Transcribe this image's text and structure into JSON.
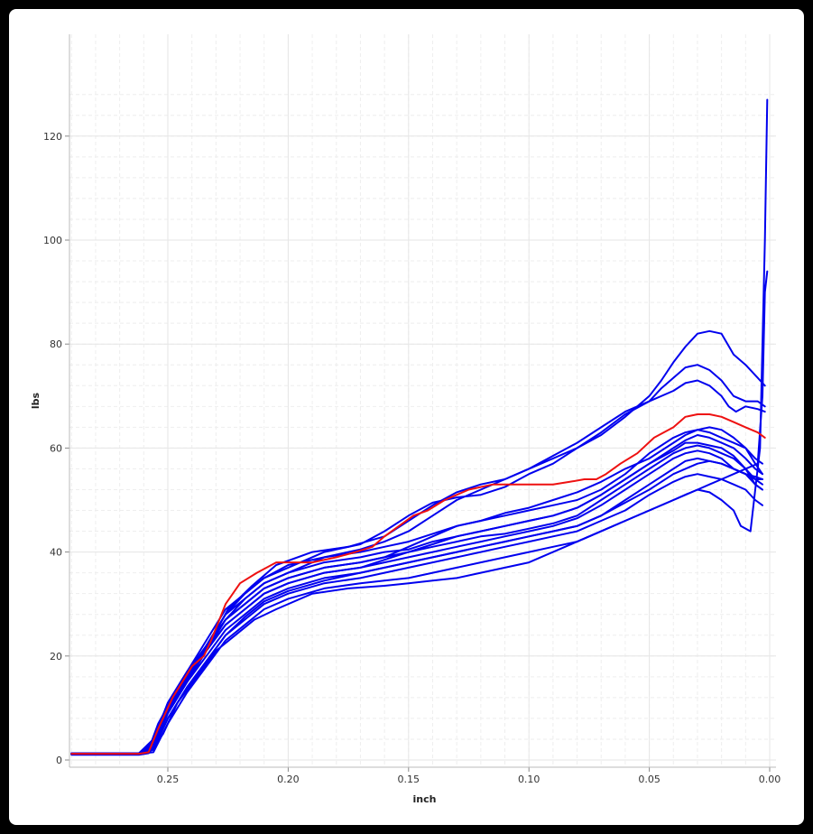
{
  "chart_data": {
    "type": "line",
    "xlabel": "inch",
    "ylabel": "lbs",
    "xlim": [
      0.29,
      0.0
    ],
    "ylim": [
      0,
      130
    ],
    "x_reversed": true,
    "grid": true,
    "x_ticks": [
      0.25,
      0.2,
      0.15,
      0.1,
      0.05,
      0.0
    ],
    "x_tick_labels": [
      "0.25",
      "0.20",
      "0.15",
      "0.10",
      "0.05",
      "0.00"
    ],
    "y_ticks": [
      0,
      20,
      40,
      60,
      80,
      100,
      120
    ],
    "y_tick_labels": [
      "0",
      "20",
      "40",
      "60",
      "80",
      "100",
      "120"
    ],
    "colors": {
      "highlight": "#ee1111",
      "other": "#0000ee",
      "grid": "#e6e6e6"
    },
    "series": [
      {
        "color": "#0000ee",
        "x": [
          0.29,
          0.262,
          0.258,
          0.254,
          0.248,
          0.24,
          0.232,
          0.225,
          0.215,
          0.205,
          0.19,
          0.175,
          0.16,
          0.15,
          0.14,
          0.13,
          0.12,
          0.11,
          0.1,
          0.09,
          0.08,
          0.07,
          0.06,
          0.05,
          0.045,
          0.04,
          0.035,
          0.03,
          0.025,
          0.02,
          0.015,
          0.01,
          0.005,
          0.002
        ],
        "y": [
          1.3,
          1.3,
          2,
          7,
          12,
          17,
          23,
          29,
          33.5,
          37.5,
          40,
          41,
          43,
          46,
          49,
          51.5,
          53,
          54,
          56,
          58,
          60,
          62.5,
          66,
          70,
          73,
          76.5,
          79.5,
          82,
          82.5,
          82,
          78,
          76,
          73.5,
          72
        ]
      },
      {
        "color": "#0000ee",
        "x": [
          0.29,
          0.262,
          0.256,
          0.25,
          0.242,
          0.234,
          0.226,
          0.218,
          0.21,
          0.2,
          0.185,
          0.17,
          0.16,
          0.15,
          0.14,
          0.13,
          0.12,
          0.11,
          0.1,
          0.09,
          0.08,
          0.07,
          0.06,
          0.05,
          0.045,
          0.04,
          0.035,
          0.03,
          0.025,
          0.02,
          0.015,
          0.01,
          0.005,
          0.002
        ],
        "y": [
          1.2,
          1.2,
          3,
          10,
          16,
          22,
          28,
          32,
          35,
          37,
          40,
          41.5,
          44,
          47,
          49.5,
          50.5,
          51,
          52.5,
          55,
          57,
          60,
          63,
          66.5,
          69,
          71.5,
          73.5,
          75.5,
          76,
          75,
          73,
          70,
          69,
          69,
          68
        ]
      },
      {
        "color": "#0000ee",
        "x": [
          0.29,
          0.262,
          0.256,
          0.25,
          0.242,
          0.234,
          0.226,
          0.218,
          0.21,
          0.2,
          0.185,
          0.17,
          0.16,
          0.15,
          0.14,
          0.13,
          0.12,
          0.11,
          0.1,
          0.09,
          0.08,
          0.07,
          0.06,
          0.05,
          0.04,
          0.035,
          0.03,
          0.025,
          0.02,
          0.017,
          0.014,
          0.01,
          0.005,
          0.002
        ],
        "y": [
          1.1,
          1.1,
          2.5,
          9,
          15,
          21,
          27,
          31,
          34,
          36,
          39,
          40.5,
          42,
          44,
          47,
          50,
          52,
          54,
          56,
          58.5,
          61,
          64,
          67,
          69,
          71,
          72.5,
          73,
          72,
          70,
          68,
          67,
          68,
          67.5,
          67
        ]
      },
      {
        "color": "#ee1111",
        "x": [
          0.29,
          0.262,
          0.258,
          0.254,
          0.248,
          0.24,
          0.235,
          0.232,
          0.226,
          0.22,
          0.213,
          0.205,
          0.197,
          0.19,
          0.18,
          0.172,
          0.165,
          0.16,
          0.154,
          0.148,
          0.142,
          0.135,
          0.125,
          0.115,
          0.105,
          0.097,
          0.09,
          0.083,
          0.077,
          0.072,
          0.068,
          0.062,
          0.055,
          0.048,
          0.04,
          0.035,
          0.03,
          0.025,
          0.02,
          0.015,
          0.01,
          0.005,
          0.002
        ],
        "y": [
          1.2,
          1.2,
          1.5,
          6,
          12,
          18,
          20,
          23,
          30,
          34,
          36,
          38,
          38,
          38,
          39,
          40,
          41,
          43,
          45,
          47,
          48,
          50,
          52,
          53,
          53,
          53,
          53,
          53.5,
          54,
          54,
          55,
          57,
          59,
          62,
          64,
          66,
          66.5,
          66.5,
          66,
          65,
          64,
          63,
          62
        ]
      },
      {
        "color": "#0000ee",
        "x": [
          0.29,
          0.262,
          0.256,
          0.25,
          0.242,
          0.234,
          0.226,
          0.218,
          0.21,
          0.2,
          0.185,
          0.17,
          0.16,
          0.15,
          0.14,
          0.13,
          0.12,
          0.11,
          0.1,
          0.09,
          0.08,
          0.07,
          0.06,
          0.05,
          0.04,
          0.035,
          0.03,
          0.025,
          0.02,
          0.015,
          0.01,
          0.006,
          0.003
        ],
        "y": [
          1.3,
          1.3,
          4,
          11,
          17,
          23,
          29,
          32,
          35,
          37.5,
          39,
          40,
          41,
          42,
          43.5,
          45,
          46,
          47,
          48,
          49,
          50,
          52,
          55,
          59,
          62,
          63,
          63.5,
          63,
          62,
          61,
          60,
          58,
          57
        ]
      },
      {
        "color": "#0000ee",
        "x": [
          0.29,
          0.262,
          0.256,
          0.25,
          0.242,
          0.234,
          0.226,
          0.218,
          0.21,
          0.2,
          0.185,
          0.17,
          0.16,
          0.15,
          0.14,
          0.13,
          0.12,
          0.11,
          0.1,
          0.09,
          0.08,
          0.07,
          0.06,
          0.05,
          0.04,
          0.035,
          0.03,
          0.025,
          0.02,
          0.015,
          0.01,
          0.006,
          0.003
        ],
        "y": [
          1.2,
          1.2,
          3,
          10,
          16,
          22,
          28,
          31,
          34,
          36,
          38,
          39,
          40,
          40.5,
          42,
          43,
          44,
          45,
          46,
          47,
          48.5,
          51,
          54,
          57,
          60,
          61.5,
          62.5,
          62,
          61,
          60,
          58,
          56,
          55
        ]
      },
      {
        "color": "#0000ee",
        "x": [
          0.29,
          0.262,
          0.256,
          0.25,
          0.242,
          0.234,
          0.226,
          0.218,
          0.21,
          0.2,
          0.185,
          0.17,
          0.16,
          0.15,
          0.14,
          0.13,
          0.12,
          0.11,
          0.1,
          0.09,
          0.08,
          0.07,
          0.06,
          0.05,
          0.04,
          0.035,
          0.03,
          0.025,
          0.02,
          0.015,
          0.01,
          0.006,
          0.003
        ],
        "y": [
          1.1,
          1.1,
          2.5,
          9,
          15,
          21,
          27,
          30,
          33,
          35,
          37,
          38,
          39,
          40,
          41,
          42,
          43,
          43.5,
          44.5,
          45.5,
          47,
          50,
          53,
          56,
          59,
          60,
          60.5,
          60,
          59,
          58,
          56,
          54,
          53
        ]
      },
      {
        "color": "#0000ee",
        "x": [
          0.29,
          0.262,
          0.256,
          0.25,
          0.242,
          0.234,
          0.226,
          0.218,
          0.21,
          0.2,
          0.185,
          0.17,
          0.16,
          0.15,
          0.14,
          0.13,
          0.12,
          0.11,
          0.1,
          0.09,
          0.08,
          0.07,
          0.06,
          0.05,
          0.04,
          0.035,
          0.03,
          0.025,
          0.02,
          0.015,
          0.01,
          0.006,
          0.003
        ],
        "y": [
          1.2,
          1.2,
          3,
          9.5,
          15.5,
          21,
          26,
          29,
          32,
          34,
          36,
          37,
          38,
          39,
          40,
          41,
          42,
          43,
          44,
          45,
          46.5,
          49,
          52,
          55,
          58,
          59,
          59.5,
          59,
          58,
          56,
          55,
          53,
          52
        ]
      },
      {
        "color": "#0000ee",
        "x": [
          0.29,
          0.262,
          0.256,
          0.25,
          0.242,
          0.234,
          0.226,
          0.218,
          0.21,
          0.2,
          0.185,
          0.17,
          0.16,
          0.15,
          0.14,
          0.13,
          0.12,
          0.11,
          0.1,
          0.09,
          0.08,
          0.07,
          0.06,
          0.05,
          0.04,
          0.035,
          0.03,
          0.025,
          0.02,
          0.015,
          0.01,
          0.006,
          0.003
        ],
        "y": [
          1.3,
          1.3,
          2.5,
          9,
          15,
          20,
          25,
          28,
          31,
          33,
          35,
          36,
          37,
          38,
          39,
          40,
          41,
          42,
          43,
          44,
          45,
          47,
          50,
          53,
          56,
          57.5,
          58,
          57.5,
          57,
          56,
          55,
          54,
          54
        ]
      },
      {
        "color": "#0000ee",
        "x": [
          0.29,
          0.262,
          0.256,
          0.25,
          0.242,
          0.234,
          0.226,
          0.218,
          0.21,
          0.2,
          0.185,
          0.17,
          0.16,
          0.15,
          0.14,
          0.13,
          0.12,
          0.11,
          0.1,
          0.09,
          0.08,
          0.07,
          0.06,
          0.05,
          0.04,
          0.035,
          0.03,
          0.025,
          0.02,
          0.015,
          0.01,
          0.006,
          0.003
        ],
        "y": [
          1.1,
          1.1,
          2,
          8,
          14,
          19,
          24,
          27,
          30,
          32,
          34,
          35,
          36,
          37,
          38,
          39,
          40,
          41,
          42,
          43,
          44,
          46,
          48,
          51,
          53.5,
          54.5,
          55,
          54.5,
          54,
          53,
          52,
          50,
          49
        ]
      },
      {
        "color": "#0000ee",
        "x": [
          0.29,
          0.262,
          0.256,
          0.25,
          0.242,
          0.234,
          0.226,
          0.218,
          0.21,
          0.2,
          0.185,
          0.17,
          0.16,
          0.15,
          0.14,
          0.13,
          0.12,
          0.11,
          0.1,
          0.09,
          0.08,
          0.07,
          0.06,
          0.05,
          0.04,
          0.035,
          0.03,
          0.025,
          0.02,
          0.015,
          0.01,
          0.005,
          0.003,
          0.002,
          0.001
        ],
        "y": [
          1.2,
          1.2,
          1.5,
          7,
          13,
          18,
          23,
          26,
          29,
          31,
          33,
          34,
          34.5,
          35,
          36,
          37,
          38,
          39,
          40,
          41,
          42,
          44,
          46,
          48,
          50,
          51,
          52,
          53,
          54,
          55,
          56,
          57,
          70,
          90,
          94
        ]
      },
      {
        "color": "#0000ee",
        "x": [
          0.29,
          0.262,
          0.258,
          0.252,
          0.246,
          0.238,
          0.23,
          0.222,
          0.214,
          0.205,
          0.19,
          0.175,
          0.16,
          0.15,
          0.14,
          0.13,
          0.12,
          0.11,
          0.1,
          0.09,
          0.08,
          0.07,
          0.06,
          0.05,
          0.04,
          0.035,
          0.03,
          0.025,
          0.02,
          0.015,
          0.012,
          0.008,
          0.004,
          0.002,
          0.001
        ],
        "y": [
          1.0,
          1.0,
          1.3,
          5,
          11,
          16,
          21,
          24,
          27,
          29,
          32,
          33,
          33.5,
          34,
          34.5,
          35,
          36,
          37,
          38,
          40,
          42,
          44,
          46,
          48,
          50,
          51,
          52,
          51.5,
          50,
          48,
          45,
          44,
          60,
          100,
          127
        ]
      },
      {
        "color": "#0000ee",
        "x": [
          0.29,
          0.262,
          0.256,
          0.25,
          0.242,
          0.234,
          0.226,
          0.218,
          0.21,
          0.2,
          0.185,
          0.17,
          0.16,
          0.15,
          0.14,
          0.13,
          0.12,
          0.11,
          0.1,
          0.09,
          0.08,
          0.07,
          0.06,
          0.05,
          0.04,
          0.035,
          0.03,
          0.025,
          0.02,
          0.015,
          0.01,
          0.006,
          0.003
        ],
        "y": [
          1.2,
          1.2,
          3,
          10,
          16,
          21,
          26,
          29,
          32,
          34,
          36,
          37,
          38.5,
          40,
          41.5,
          43,
          44,
          45,
          46,
          47,
          48.5,
          51,
          54,
          57,
          59.5,
          61,
          61,
          60.5,
          60,
          58.5,
          56,
          53,
          52
        ]
      },
      {
        "color": "#0000ee",
        "x": [
          0.29,
          0.262,
          0.256,
          0.25,
          0.242,
          0.234,
          0.226,
          0.218,
          0.21,
          0.2,
          0.185,
          0.17,
          0.16,
          0.15,
          0.14,
          0.13,
          0.12,
          0.11,
          0.1,
          0.09,
          0.08,
          0.07,
          0.06,
          0.05,
          0.04,
          0.035,
          0.03,
          0.025,
          0.02,
          0.015,
          0.01,
          0.006,
          0.003
        ],
        "y": [
          1.3,
          1.3,
          3.5,
          11,
          17,
          22,
          27,
          30,
          33,
          35,
          37,
          38,
          39,
          41,
          43,
          45,
          46,
          47.5,
          48.5,
          50,
          51.5,
          53.5,
          56,
          58,
          61,
          62.5,
          63.5,
          64,
          63.5,
          62,
          60,
          57,
          55
        ]
      },
      {
        "color": "#0000ee",
        "x": [
          0.29,
          0.262,
          0.256,
          0.25,
          0.242,
          0.234,
          0.226,
          0.218,
          0.21,
          0.2,
          0.185,
          0.17,
          0.16,
          0.15,
          0.14,
          0.13,
          0.12,
          0.11,
          0.1,
          0.09,
          0.08,
          0.07,
          0.06,
          0.05,
          0.04,
          0.035,
          0.03,
          0.025,
          0.02,
          0.015,
          0.01,
          0.006,
          0.003
        ],
        "y": [
          1.1,
          1.1,
          2,
          8,
          14,
          19,
          24,
          27.5,
          30.5,
          32.5,
          34.5,
          36,
          37,
          38,
          39,
          40,
          41,
          42,
          43,
          44,
          45,
          47,
          49.5,
          52,
          55,
          56,
          57,
          57.5,
          57,
          56,
          55,
          54.5,
          54
        ]
      }
    ]
  }
}
